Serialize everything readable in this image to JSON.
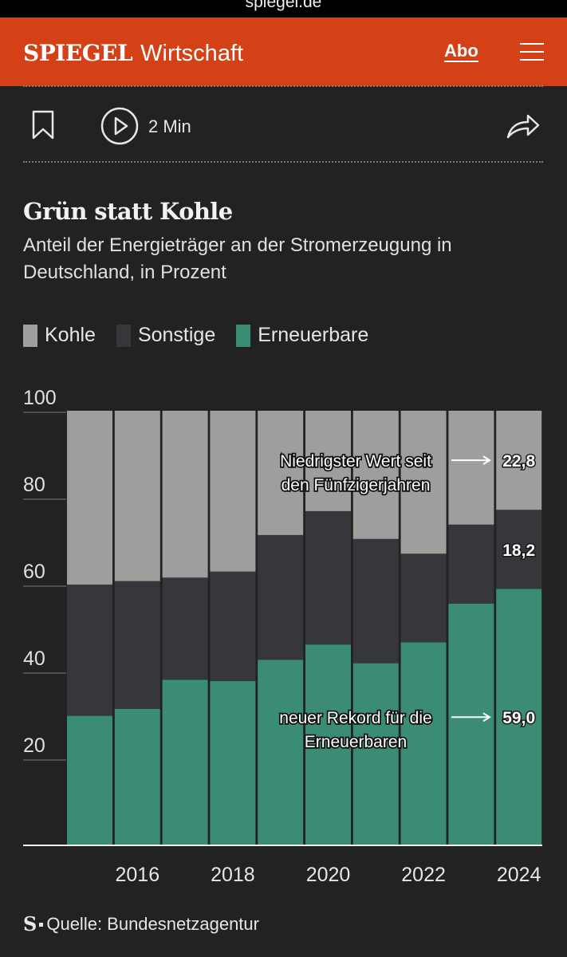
{
  "browser": {
    "url": "spiegel.de"
  },
  "header": {
    "logo": "SPIEGEL",
    "section": "Wirtschaft",
    "abo": "Abo"
  },
  "toolbar": {
    "listen_duration": "2 Min"
  },
  "article": {
    "title": "Grün statt Kohle",
    "subtitle": "Anteil der Energieträger an der Stromerzeugung in Deutschland, in Prozent",
    "source": "Quelle: Bundesnetzagentur"
  },
  "colors": {
    "kohle": "#9e9e9c",
    "sonstige": "#35373b",
    "erneuerbare": "#3a8c74",
    "header": "#d54117",
    "background": "#222222"
  },
  "chart_data": {
    "type": "bar",
    "stacked": true,
    "categories": [
      "2015",
      "2016",
      "2017",
      "2018",
      "2019",
      "2020",
      "2021",
      "2022",
      "2023",
      "2024"
    ],
    "x_tick_labels": [
      "2016",
      "2018",
      "2020",
      "2022",
      "2024"
    ],
    "ylim": [
      0,
      100
    ],
    "y_ticks": [
      "20",
      "40",
      "60",
      "80",
      "100"
    ],
    "legend": [
      "Kohle",
      "Sonstige",
      "Erneuerbare"
    ],
    "legend_position": "top",
    "series": [
      {
        "name": "Erneuerbare",
        "color": "#3a8c74",
        "values": [
          29.8,
          31.4,
          38.1,
          37.8,
          42.7,
          46.2,
          41.9,
          46.7,
          55.6,
          59.0
        ]
      },
      {
        "name": "Sonstige",
        "color": "#35373b",
        "values": [
          30.2,
          29.4,
          23.5,
          25.2,
          28.7,
          30.7,
          28.6,
          20.4,
          18.2,
          18.2
        ]
      },
      {
        "name": "Kohle",
        "color": "#9e9e9c",
        "values": [
          40.0,
          39.2,
          38.4,
          37.0,
          28.6,
          23.1,
          29.5,
          32.9,
          26.2,
          22.8
        ]
      }
    ],
    "data_labels": [
      "22,8",
      "18,2",
      "59,0"
    ],
    "annotations": [
      {
        "lines": [
          "Niedrigster Wert seit",
          "den Fünfzigerjahren"
        ],
        "series": "Kohle",
        "category": "2024"
      },
      {
        "lines": [
          "neuer Rekord für die",
          "Erneuerbaren"
        ],
        "series": "Erneuerbare",
        "category": "2024"
      }
    ]
  }
}
